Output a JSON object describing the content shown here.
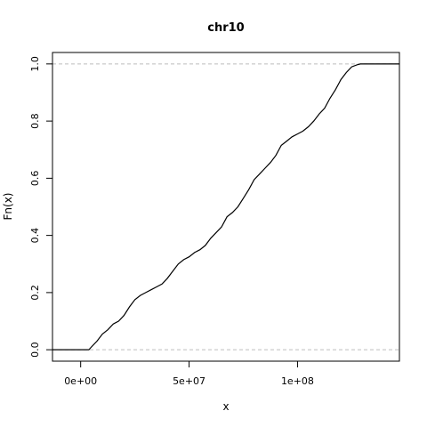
{
  "chart_data": {
    "type": "line",
    "subtype": "ecdf-step",
    "title": "chr10",
    "xlabel": "x",
    "ylabel": "Fn(x)",
    "xlim": [
      -13000000,
      147000000
    ],
    "ylim": [
      -0.04,
      1.04
    ],
    "x_ticks": [
      0,
      50000000,
      100000000
    ],
    "x_tick_labels": [
      "0e+00",
      "5e+07",
      "1e+08"
    ],
    "y_ticks": [
      0.0,
      0.2,
      0.4,
      0.6,
      0.8,
      1.0
    ],
    "y_tick_labels": [
      "0.0",
      "0.2",
      "0.4",
      "0.6",
      "0.8",
      "1.0"
    ],
    "reference_lines": [
      0,
      1
    ],
    "grid": false,
    "colors": {
      "line": "#000000",
      "reference": "#bebebe",
      "axis": "#000000"
    },
    "series": [
      {
        "x": [
          -13000000,
          3800000,
          5000000,
          7500000,
          10000000,
          12500000,
          15000000,
          17500000,
          20000000,
          22500000,
          25000000,
          27500000,
          30000000,
          32500000,
          35000000,
          37500000,
          40000000,
          42500000,
          45000000,
          47500000,
          50000000,
          52500000,
          55000000,
          57500000,
          60000000,
          62500000,
          65000000,
          67500000,
          70000000,
          72500000,
          75000000,
          77500000,
          80000000,
          82500000,
          85000000,
          87500000,
          90000000,
          92500000,
          95000000,
          97500000,
          100000000,
          102500000,
          105000000,
          107500000,
          110000000,
          112500000,
          115000000,
          117500000,
          120000000,
          122500000,
          125000000,
          127500000,
          129000000,
          131000000,
          147000000
        ],
        "y": [
          0.0,
          0.0,
          0.01,
          0.03,
          0.055,
          0.07,
          0.09,
          0.1,
          0.12,
          0.15,
          0.175,
          0.19,
          0.2,
          0.21,
          0.22,
          0.23,
          0.25,
          0.275,
          0.3,
          0.315,
          0.325,
          0.34,
          0.35,
          0.365,
          0.39,
          0.41,
          0.43,
          0.465,
          0.48,
          0.5,
          0.53,
          0.56,
          0.595,
          0.615,
          0.635,
          0.655,
          0.68,
          0.715,
          0.73,
          0.745,
          0.755,
          0.765,
          0.78,
          0.8,
          0.825,
          0.845,
          0.88,
          0.91,
          0.945,
          0.97,
          0.99,
          0.997,
          1.0,
          1.0,
          1.0
        ]
      }
    ]
  }
}
